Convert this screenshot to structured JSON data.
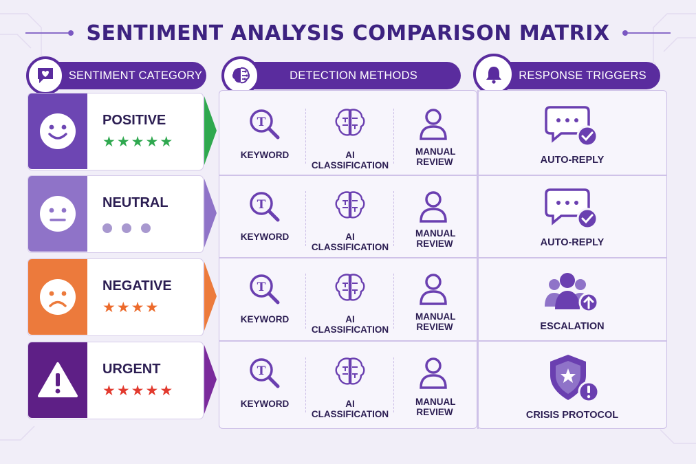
{
  "title": "SENTIMENT ANALYSIS COMPARISON MATRIX",
  "columns": {
    "category": "SENTIMENT CATEGORY",
    "methods": "DETECTION METHODS",
    "triggers": "RESPONSE TRIGGERS"
  },
  "colors": {
    "header": "#5a2c9e",
    "positive": "#6d46b3",
    "neutral": "#8f73c8",
    "negative": "#ec7a3c",
    "urgent": "#5e1f86",
    "star_green": "#2fa84f",
    "star_orange": "#ec6a2b",
    "star_red": "#e23a2e"
  },
  "rows": [
    {
      "category": "POSITIVE",
      "face_icon": "smile-face-icon",
      "rating_icon": "star-icon",
      "rating": 5,
      "methods": [
        "KEYWORD",
        "AI CLASSIFICATION",
        "MANUAL REVIEW"
      ],
      "trigger": "AUTO-REPLY",
      "trigger_icon": "chat-check-icon"
    },
    {
      "category": "NEUTRAL",
      "face_icon": "neutral-face-icon",
      "rating_icon": "dot-icon",
      "rating": 3,
      "methods": [
        "KEYWORD",
        "AI CLASSIFICATION",
        "MANUAL REVIEW"
      ],
      "trigger": "AUTO-REPLY",
      "trigger_icon": "chat-check-icon"
    },
    {
      "category": "NEGATIVE",
      "face_icon": "sad-face-icon",
      "rating_icon": "star-icon",
      "rating": 4,
      "methods": [
        "KEYWORD",
        "AI CLASSIFICATION",
        "MANUAL REVIEW"
      ],
      "trigger": "ESCALATION",
      "trigger_icon": "group-escalate-icon"
    },
    {
      "category": "URGENT",
      "face_icon": "warning-icon",
      "rating_icon": "star-icon",
      "rating": 5,
      "methods": [
        "KEYWORD",
        "AI CLASSIFICATION",
        "MANUAL REVIEW"
      ],
      "trigger": "CRISIS PROTOCOL",
      "trigger_icon": "shield-alert-icon"
    }
  ]
}
